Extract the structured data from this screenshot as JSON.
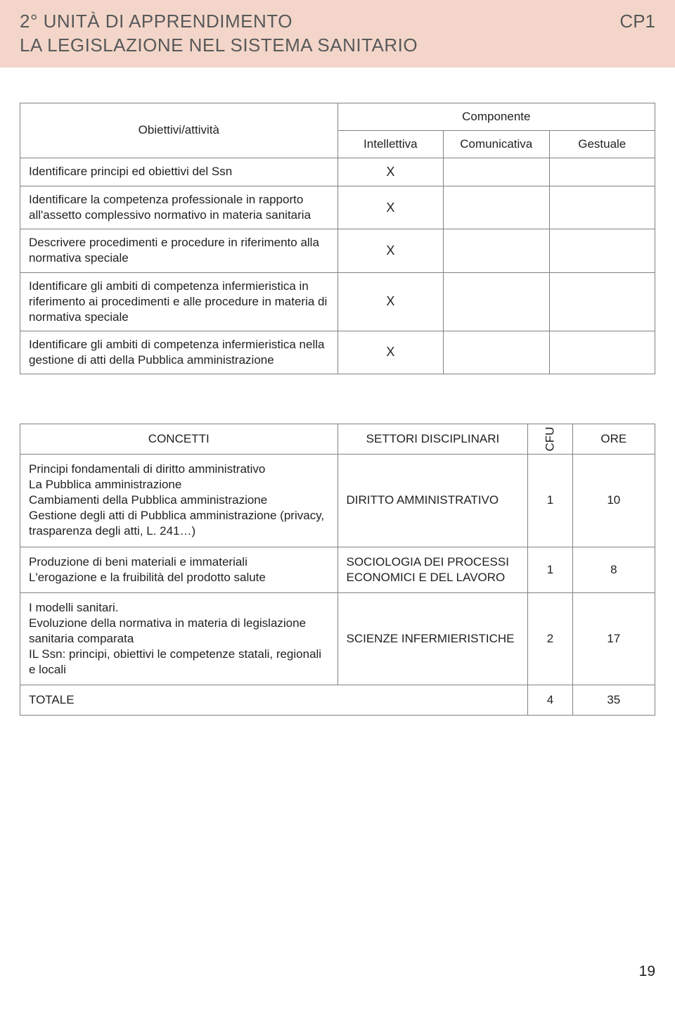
{
  "header": {
    "line1": "2° UNITÀ DI APPRENDIMENTO",
    "line2": "LA LEGISLAZIONE NEL SISTEMA SANITARIO",
    "code": "CP1"
  },
  "table1": {
    "objHeader": "Obiettivi/attività",
    "compHeader": "Componente",
    "col1": "Intellettiva",
    "col2": "Comunicativa",
    "col3": "Gestuale",
    "rows": [
      {
        "label": "Identificare principi ed obiettivi del Ssn",
        "c1": "X",
        "c2": "",
        "c3": ""
      },
      {
        "label": "Identificare la competenza professionale in rapporto all'assetto complessivo normativo in materia sanitaria",
        "c1": "X",
        "c2": "",
        "c3": ""
      },
      {
        "label": "Descrivere procedimenti e procedure in riferimento alla normativa speciale",
        "c1": "X",
        "c2": "",
        "c3": ""
      },
      {
        "label": "Identificare gli ambiti di competenza infermieristica in riferimento ai procedimenti e alle procedure in materia di normativa speciale",
        "c1": "X",
        "c2": "",
        "c3": ""
      },
      {
        "label": "Identificare gli ambiti di competenza infermieristica nella gestione di atti della Pubblica amministrazione",
        "c1": "X",
        "c2": "",
        "c3": ""
      }
    ]
  },
  "table2": {
    "hConcetti": "CONCETTI",
    "hSettori": "SETTORI DISCIPLINARI",
    "hCfu": "CFU",
    "hOre": "ORE",
    "rows": [
      {
        "concetti": "Principi fondamentali di diritto amministrativo\nLa Pubblica amministrazione\nCambiamenti della Pubblica amministrazione\nGestione degli atti di Pubblica amministrazione (privacy, trasparenza degli atti, L. 241…)",
        "settori": "DIRITTO AMMINISTRATIVO",
        "cfu": "1",
        "ore": "10"
      },
      {
        "concetti": "Produzione di beni materiali e immateriali\nL'erogazione e la fruibilità del prodotto salute",
        "settori": "SOCIOLOGIA DEI PROCESSI ECONOMICI E DEL LAVORO",
        "cfu": "1",
        "ore": "8"
      },
      {
        "concetti": "I modelli sanitari.\nEvoluzione della normativa in materia di legislazione sanitaria comparata\nIL Ssn: principi, obiettivi le competenze statali, regionali e locali",
        "settori": "SCIENZE INFERMIERISTICHE",
        "cfu": "2",
        "ore": "17"
      }
    ],
    "totalLabel": "TOTALE",
    "totalCfu": "4",
    "totalOre": "35"
  },
  "pageNumber": "19"
}
